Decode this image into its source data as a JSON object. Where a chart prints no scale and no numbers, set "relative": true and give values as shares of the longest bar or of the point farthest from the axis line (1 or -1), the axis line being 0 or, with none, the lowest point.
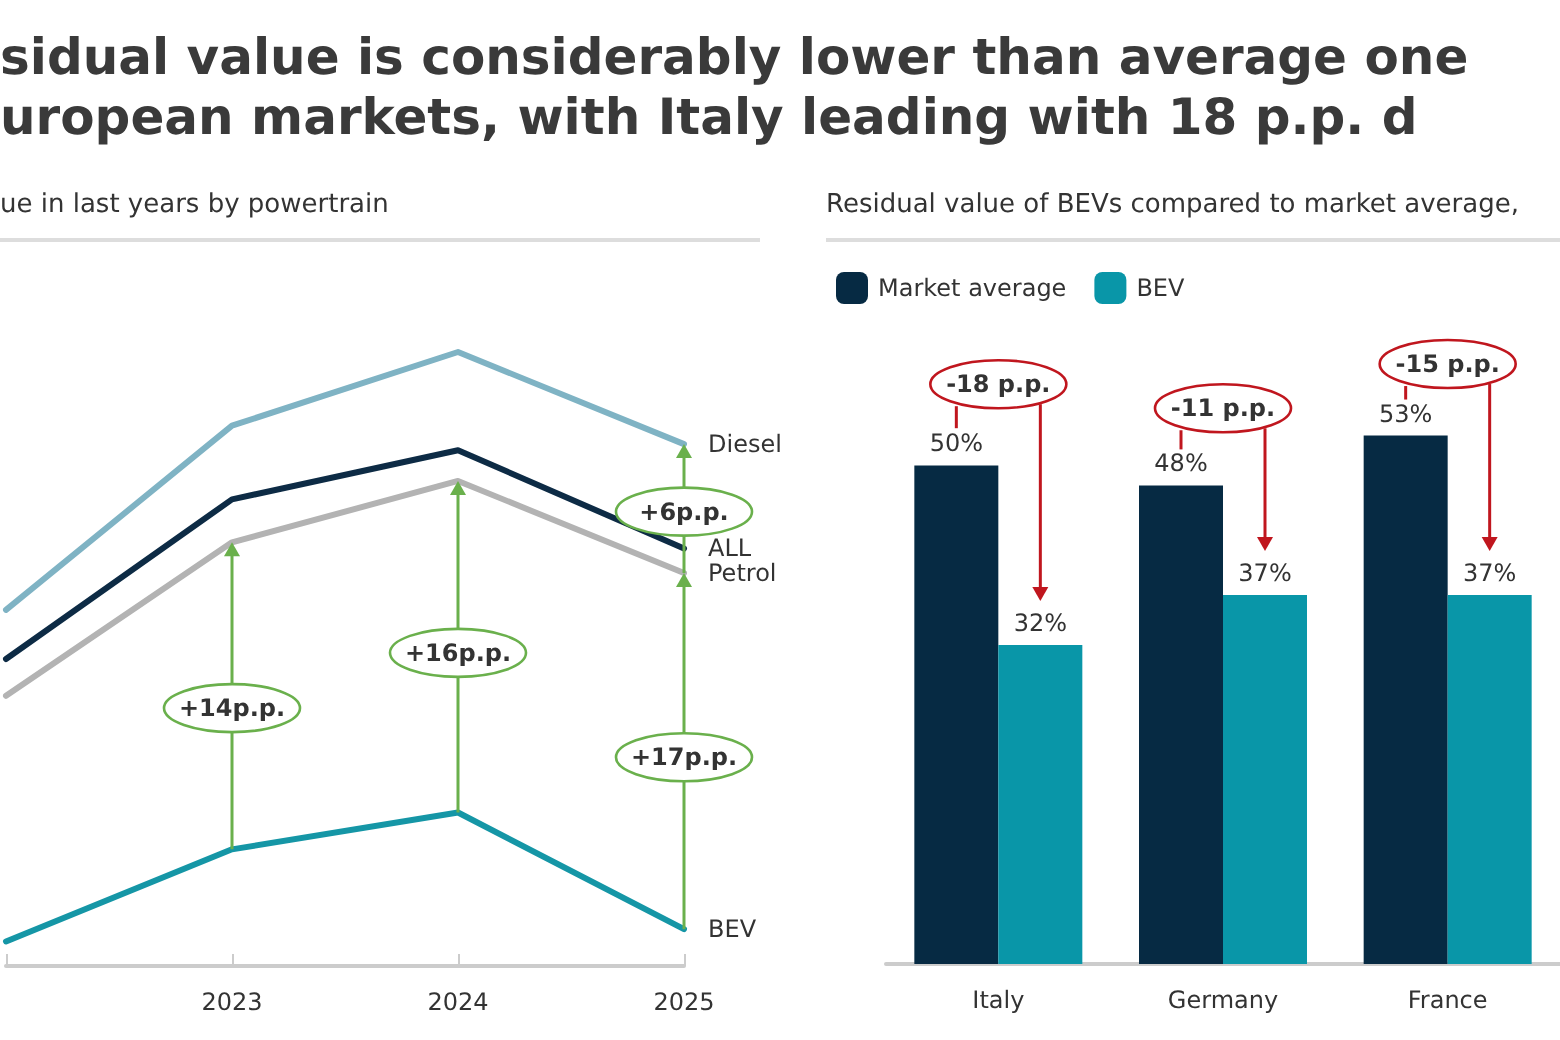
{
  "chart_data": [
    {
      "type": "line",
      "title": "sidual value is considerably lower than average one\nuropean markets, with Italy leading with 18 p.p. d",
      "subtitle": "ue in last years by powertrain",
      "categories": [
        null,
        "2023",
        "2024",
        "2025"
      ],
      "relative": true,
      "legend": false,
      "marker": "none",
      "line_style": "solid",
      "series": [
        {
          "name": "Diesel",
          "color": "#7fb3c4",
          "values": [
            0.58,
            0.88,
            1.0,
            0.85
          ]
        },
        {
          "name": "ALL",
          "color": "#0d2b45",
          "values": [
            0.5,
            0.76,
            0.84,
            0.68
          ]
        },
        {
          "name": "Petrol",
          "color": "#b3b3b3",
          "values": [
            0.44,
            0.69,
            0.79,
            0.64
          ]
        },
        {
          "name": "BEV",
          "color": "#1596a6",
          "values": [
            0.04,
            0.19,
            0.25,
            0.06
          ]
        }
      ],
      "annotations": [
        "+14p.p.",
        "+16p.p.",
        "+6p.p.",
        "+17p.p."
      ]
    },
    {
      "type": "bar",
      "title": "Residual value of BEVs compared to market average,",
      "categories": [
        "Italy",
        "Germany",
        "France"
      ],
      "tick_labels": "x",
      "legend": "top left",
      "series": [
        {
          "name": "Market average",
          "color": "#062a43",
          "values": [
            50,
            48,
            53
          ],
          "value_labels": [
            "50%",
            "48%",
            "53%"
          ]
        },
        {
          "name": "BEV",
          "color": "#0996a8",
          "values": [
            32,
            37,
            37
          ],
          "value_labels": [
            "32%",
            "37%",
            "37%"
          ]
        }
      ],
      "annotations": [
        "-18 p.p.",
        "-11 p.p.",
        "-15 p.p."
      ]
    }
  ]
}
